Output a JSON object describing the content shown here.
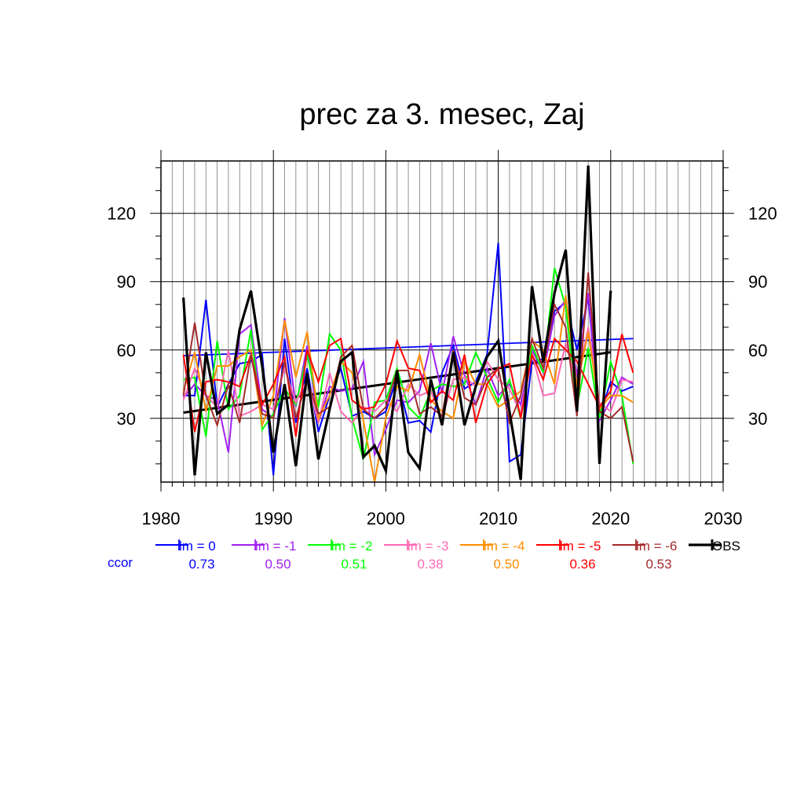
{
  "chart_data": {
    "type": "line",
    "title": "prec za 3. mesec, Zaj",
    "xlabel": "",
    "ylabel": "",
    "xlim": [
      1980,
      2030
    ],
    "ylim": [
      2,
      143
    ],
    "xticks": [
      1980,
      1990,
      2000,
      2010,
      2020,
      2030
    ],
    "yticks": [
      30,
      60,
      90,
      120
    ],
    "grid": true,
    "legend_position": "bottom",
    "ccor_label": "ccor",
    "series": [
      {
        "name": "lm = 0",
        "color": "#0000ff",
        "ccor": "0.73",
        "x": [
          1982,
          1983,
          1984,
          1985,
          1986,
          1987,
          1988,
          1989,
          1990,
          1991,
          1992,
          1993,
          1994,
          1995,
          1996,
          1997,
          1998,
          1999,
          2000,
          2001,
          2002,
          2003,
          2004,
          2005,
          2006,
          2007,
          2008,
          2009,
          2010,
          2011,
          2012,
          2013,
          2014,
          2015,
          2016,
          2017,
          2018,
          2019,
          2020,
          2021,
          2022
        ],
        "y": [
          40,
          40,
          82,
          35,
          45,
          54,
          55,
          58,
          5,
          65,
          28,
          52,
          24,
          40,
          52,
          31,
          33,
          30,
          33,
          48,
          28,
          29,
          24,
          50,
          62,
          43,
          46,
          58,
          107,
          11,
          14,
          55,
          56,
          77,
          81,
          60,
          83,
          31,
          46,
          42,
          44
        ],
        "trend": [
          [
            1982,
            57.5
          ],
          [
            2022,
            65
          ]
        ]
      },
      {
        "name": "lm = -1",
        "color": "#a020f0",
        "ccor": "0.50",
        "x": [
          1982,
          1983,
          1984,
          1985,
          1986,
          1987,
          1988,
          1989,
          1990,
          1991,
          1992,
          1993,
          1994,
          1995,
          1996,
          1997,
          1998,
          1999,
          2000,
          2001,
          2002,
          2003,
          2004,
          2005,
          2006,
          2007,
          2008,
          2009,
          2010,
          2011,
          2012,
          2013,
          2014,
          2015,
          2016,
          2017,
          2018,
          2019,
          2020,
          2021,
          2022
        ],
        "y": [
          39,
          45,
          40,
          38,
          15,
          67,
          71,
          34,
          30,
          74,
          35,
          62,
          28,
          44,
          42,
          43,
          55,
          14,
          25,
          38,
          37,
          42,
          63,
          41,
          66,
          49,
          36,
          52,
          40,
          45,
          36,
          60,
          50,
          75,
          82,
          48,
          85,
          29,
          38,
          48,
          45
        ]
      },
      {
        "name": "lm = -2",
        "color": "#00ff00",
        "ccor": "0.51",
        "x": [
          1982,
          1983,
          1984,
          1985,
          1986,
          1987,
          1988,
          1989,
          1990,
          1991,
          1992,
          1993,
          1994,
          1995,
          1996,
          1997,
          1998,
          1999,
          2000,
          2001,
          2002,
          2003,
          2004,
          2005,
          2006,
          2007,
          2008,
          2009,
          2010,
          2011,
          2012,
          2013,
          2014,
          2015,
          2016,
          2017,
          2018,
          2019,
          2020,
          2021,
          2022
        ],
        "y": [
          47,
          48,
          22,
          64,
          34,
          40,
          69,
          25,
          32,
          43,
          36,
          58,
          35,
          67,
          60,
          30,
          12,
          37,
          38,
          52,
          35,
          30,
          42,
          45,
          44,
          45,
          59,
          48,
          37,
          47,
          30,
          62,
          50,
          96,
          79,
          35,
          61,
          30,
          55,
          40,
          10
        ]
      },
      {
        "name": "lm = -3",
        "color": "#ff69b4",
        "ccor": "0.38",
        "x": [
          1982,
          1983,
          1984,
          1985,
          1986,
          1987,
          1988,
          1989,
          1990,
          1991,
          1992,
          1993,
          1994,
          1995,
          1996,
          1997,
          1998,
          1999,
          2000,
          2001,
          2002,
          2003,
          2004,
          2005,
          2006,
          2007,
          2008,
          2009,
          2010,
          2011,
          2012,
          2013,
          2014,
          2015,
          2016,
          2017,
          2018,
          2019,
          2020,
          2021,
          2022
        ],
        "y": [
          38,
          52,
          40,
          35,
          60,
          31,
          33,
          36,
          34,
          52,
          37,
          47,
          28,
          50,
          33,
          28,
          35,
          33,
          38,
          33,
          45,
          40,
          42,
          30,
          47,
          48,
          44,
          55,
          47,
          43,
          32,
          58,
          40,
          41,
          63,
          45,
          70,
          37,
          33,
          47,
          46
        ]
      },
      {
        "name": "lm = -4",
        "color": "#ff8c00",
        "ccor": "0.50",
        "x": [
          1982,
          1983,
          1984,
          1985,
          1986,
          1987,
          1988,
          1989,
          1990,
          1991,
          1992,
          1993,
          1994,
          1995,
          1996,
          1997,
          1998,
          1999,
          2000,
          2001,
          2002,
          2003,
          2004,
          2005,
          2006,
          2007,
          2008,
          2009,
          2010,
          2011,
          2012,
          2013,
          2014,
          2015,
          2016,
          2017,
          2018,
          2019,
          2020,
          2021,
          2022
        ],
        "y": [
          42,
          59,
          33,
          53,
          53,
          57,
          60,
          27,
          40,
          73,
          48,
          68,
          30,
          40,
          55,
          50,
          29,
          2,
          30,
          44,
          42,
          58,
          38,
          33,
          30,
          55,
          45,
          45,
          35,
          38,
          42,
          64,
          60,
          45,
          84,
          44,
          68,
          34,
          40,
          40,
          37
        ]
      },
      {
        "name": "lm = -5",
        "color": "#ff0000",
        "ccor": "0.36",
        "x": [
          1982,
          1983,
          1984,
          1985,
          1986,
          1987,
          1988,
          1989,
          1990,
          1991,
          1992,
          1993,
          1994,
          1995,
          1996,
          1997,
          1998,
          1999,
          2000,
          2001,
          2002,
          2003,
          2004,
          2005,
          2006,
          2007,
          2008,
          2009,
          2010,
          2011,
          2012,
          2013,
          2014,
          2015,
          2016,
          2017,
          2018,
          2019,
          2020,
          2021,
          2022
        ],
        "y": [
          58,
          24,
          46,
          47,
          46,
          44,
          58,
          36,
          45,
          57,
          22,
          60,
          46,
          62,
          65,
          38,
          34,
          35,
          45,
          64,
          52,
          51,
          37,
          42,
          38,
          58,
          28,
          45,
          52,
          54,
          30,
          58,
          47,
          65,
          60,
          55,
          45,
          35,
          42,
          67,
          50
        ]
      },
      {
        "name": "lm = -6",
        "color": "#a52a2a",
        "ccor": "0.53",
        "x": [
          1982,
          1983,
          1984,
          1985,
          1986,
          1987,
          1988,
          1989,
          1990,
          1991,
          1992,
          1993,
          1994,
          1995,
          1996,
          1997,
          1998,
          1999,
          2000,
          2001,
          2002,
          2003,
          2004,
          2005,
          2006,
          2007,
          2008,
          2009,
          2010,
          2011,
          2012,
          2013,
          2014,
          2015,
          2016,
          2017,
          2018,
          2019,
          2020,
          2021,
          2022
        ],
        "y": [
          40,
          72,
          40,
          27,
          45,
          28,
          58,
          32,
          30,
          55,
          30,
          47,
          32,
          35,
          57,
          62,
          34,
          30,
          35,
          51,
          51,
          32,
          35,
          31,
          60,
          39,
          36,
          48,
          52,
          28,
          40,
          65,
          52,
          80,
          70,
          31,
          94,
          33,
          30,
          35,
          11
        ]
      },
      {
        "name": "OBS",
        "color": "#000000",
        "ccor": "",
        "x": [
          1982,
          1983,
          1984,
          1985,
          1986,
          1987,
          1988,
          1989,
          1990,
          1991,
          1992,
          1993,
          1994,
          1995,
          1996,
          1997,
          1998,
          1999,
          2000,
          2001,
          2002,
          2003,
          2004,
          2005,
          2006,
          2007,
          2008,
          2009,
          2010,
          2011,
          2012,
          2013,
          2014,
          2015,
          2016,
          2017,
          2018,
          2019,
          2020
        ],
        "y": [
          83,
          5,
          59,
          32,
          36,
          69,
          86,
          53,
          15,
          45,
          9,
          50,
          12,
          34,
          55,
          59,
          13,
          18,
          7,
          51,
          15,
          8,
          47,
          27,
          59,
          27,
          44,
          57,
          64,
          33,
          3,
          88,
          55,
          85,
          104,
          33,
          141,
          10,
          86
        ],
        "trend": [
          [
            1982,
            32.5
          ],
          [
            2020,
            59
          ]
        ]
      }
    ]
  }
}
